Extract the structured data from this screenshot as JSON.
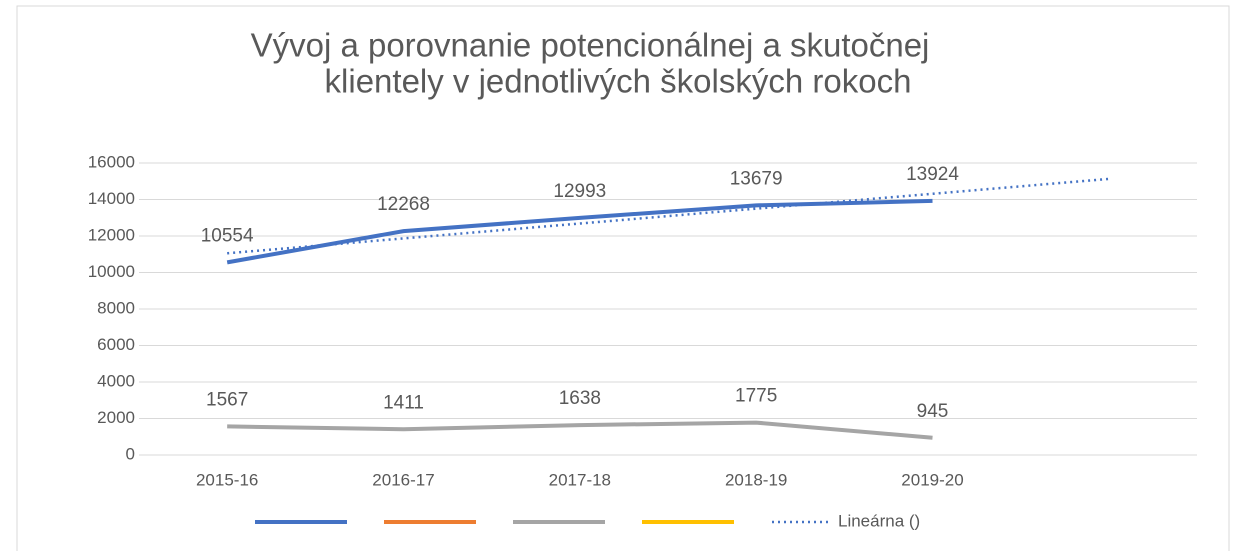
{
  "chart_data": {
    "type": "line",
    "title": [
      "Vývoj a porovnanie potencionálnej a skutočnej",
      "klientely v jednotlivých školských rokoch"
    ],
    "categories": [
      "2015-16",
      "2016-17",
      "2017-18",
      "2018-19",
      "2019-20"
    ],
    "series": [
      {
        "color": "#4472c4",
        "values": [
          10554,
          12268,
          12993,
          13679,
          13924
        ]
      },
      {
        "color": "#ed7d31"
      },
      {
        "color": "#a5a5a5",
        "values": [
          1567,
          1411,
          1638,
          1775,
          945
        ]
      },
      {
        "color": "#ffc000"
      }
    ],
    "trendline": {
      "name": "Lineárna ()",
      "color": "#4472c4",
      "x": [
        0,
        5
      ],
      "values": [
        11053,
        15129
      ]
    },
    "ylim": [
      0,
      16000
    ],
    "yticks": [
      0,
      2000,
      4000,
      6000,
      8000,
      10000,
      12000,
      14000,
      16000
    ],
    "grid": true
  }
}
